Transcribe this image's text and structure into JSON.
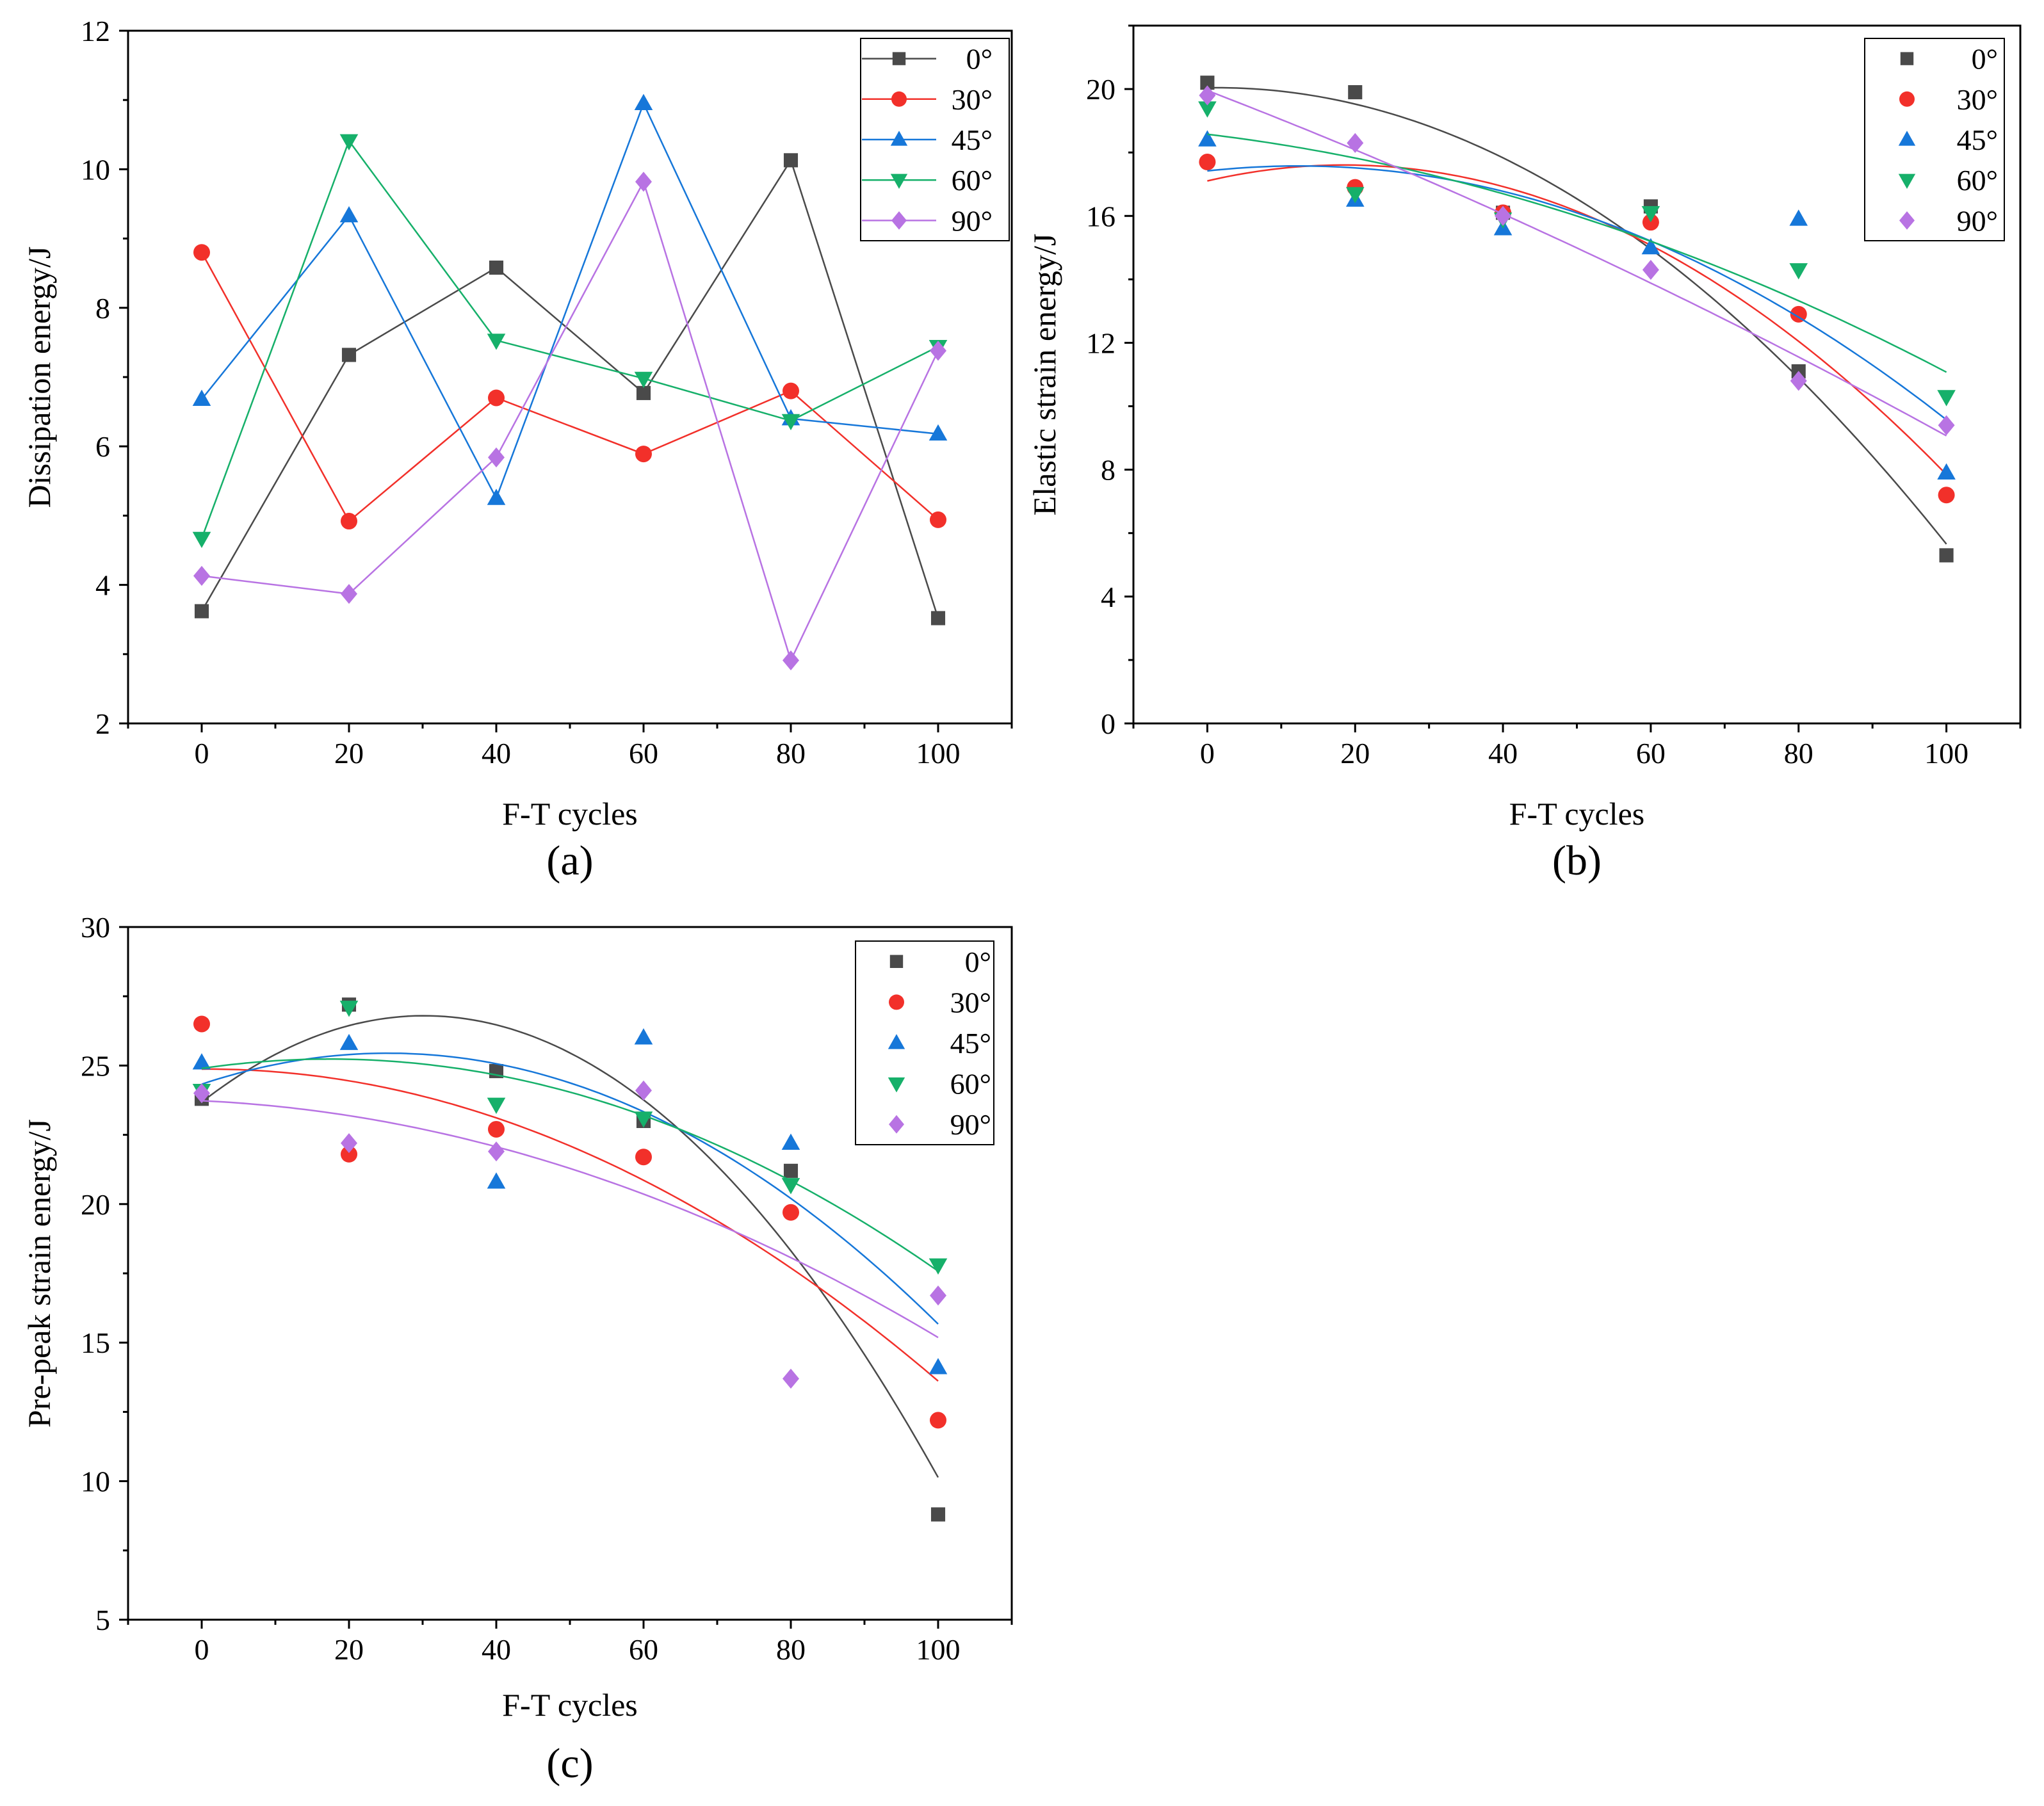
{
  "colors": {
    "0°": "#4a4a4a",
    "30°": "#f2302a",
    "45°": "#1677d9",
    "60°": "#16b06a",
    "90°": "#b873e3"
  },
  "chart_data": [
    {
      "type": "line",
      "panel_label": "(a)",
      "title": "",
      "xlabel": "F-T cycles",
      "ylabel": "Dissipation energy/J",
      "x": [
        0,
        20,
        40,
        60,
        80,
        100
      ],
      "xlim": [
        -10,
        110
      ],
      "xticks": [
        0,
        20,
        40,
        60,
        80,
        100
      ],
      "ylim": [
        2,
        12
      ],
      "yticks": [
        2,
        4,
        6,
        8,
        10,
        12
      ],
      "legend_position": "top-right",
      "legend_lines": true,
      "series": [
        {
          "name": "0°",
          "marker": "square",
          "values": [
            3.62,
            7.32,
            8.58,
            6.77,
            10.13,
            3.52
          ]
        },
        {
          "name": "30°",
          "marker": "circle",
          "values": [
            8.8,
            4.92,
            6.7,
            5.89,
            6.8,
            4.94
          ]
        },
        {
          "name": "45°",
          "marker": "triangle-up",
          "values": [
            6.68,
            9.33,
            5.25,
            10.95,
            6.4,
            6.18
          ]
        },
        {
          "name": "60°",
          "marker": "triangle-down",
          "values": [
            4.67,
            10.41,
            7.53,
            6.98,
            6.37,
            7.44
          ]
        },
        {
          "name": "90°",
          "marker": "diamond",
          "values": [
            4.13,
            3.87,
            5.84,
            9.82,
            2.91,
            7.38
          ]
        }
      ]
    },
    {
      "type": "scatter",
      "panel_label": "(b)",
      "title": "",
      "xlabel": "F-T cycles",
      "ylabel": "Elastic strain energy/J",
      "x": [
        0,
        20,
        40,
        60,
        80,
        100
      ],
      "xlim": [
        -10,
        110
      ],
      "xticks": [
        0,
        20,
        40,
        60,
        80,
        100
      ],
      "ylim": [
        0,
        22
      ],
      "yticks": [
        0,
        4,
        8,
        12,
        16,
        20
      ],
      "legend_position": "top-right",
      "legend_lines": false,
      "fit": "quadratic",
      "series": [
        {
          "name": "0°",
          "marker": "square",
          "values": [
            20.2,
            19.9,
            16.1,
            16.3,
            11.1,
            5.3
          ]
        },
        {
          "name": "30°",
          "marker": "circle",
          "values": [
            17.7,
            16.9,
            16.1,
            15.8,
            12.9,
            7.2
          ]
        },
        {
          "name": "45°",
          "marker": "triangle-up",
          "values": [
            18.4,
            16.5,
            15.6,
            15.0,
            15.9,
            7.9
          ]
        },
        {
          "name": "60°",
          "marker": "triangle-down",
          "values": [
            19.4,
            16.7,
            15.9,
            16.1,
            14.3,
            10.3
          ]
        },
        {
          "name": "90°",
          "marker": "diamond",
          "values": [
            19.8,
            18.3,
            16.0,
            14.3,
            10.8,
            9.4
          ]
        }
      ]
    },
    {
      "type": "scatter",
      "panel_label": "(c)",
      "title": "",
      "xlabel": "F-T cycles",
      "ylabel": "Pre-peak strain energy/J",
      "x": [
        0,
        20,
        40,
        60,
        80,
        100
      ],
      "xlim": [
        -10,
        110
      ],
      "xticks": [
        0,
        20,
        40,
        60,
        80,
        100
      ],
      "ylim": [
        5,
        30
      ],
      "yticks": [
        5,
        10,
        15,
        20,
        25,
        30
      ],
      "legend_position": "top-right",
      "legend_lines": false,
      "fit": "quadratic",
      "series": [
        {
          "name": "0°",
          "marker": "square",
          "values": [
            23.8,
            27.2,
            24.8,
            23.0,
            21.2,
            8.8
          ]
        },
        {
          "name": "30°",
          "marker": "circle",
          "values": [
            26.5,
            21.8,
            22.7,
            21.7,
            19.7,
            12.2
          ]
        },
        {
          "name": "45°",
          "marker": "triangle-up",
          "values": [
            25.1,
            25.8,
            20.8,
            26.0,
            22.2,
            14.1
          ]
        },
        {
          "name": "60°",
          "marker": "triangle-down",
          "values": [
            24.1,
            27.1,
            23.6,
            23.1,
            20.7,
            17.8
          ]
        },
        {
          "name": "90°",
          "marker": "diamond",
          "values": [
            24.0,
            22.2,
            21.9,
            24.1,
            13.7,
            16.7
          ]
        }
      ]
    }
  ]
}
